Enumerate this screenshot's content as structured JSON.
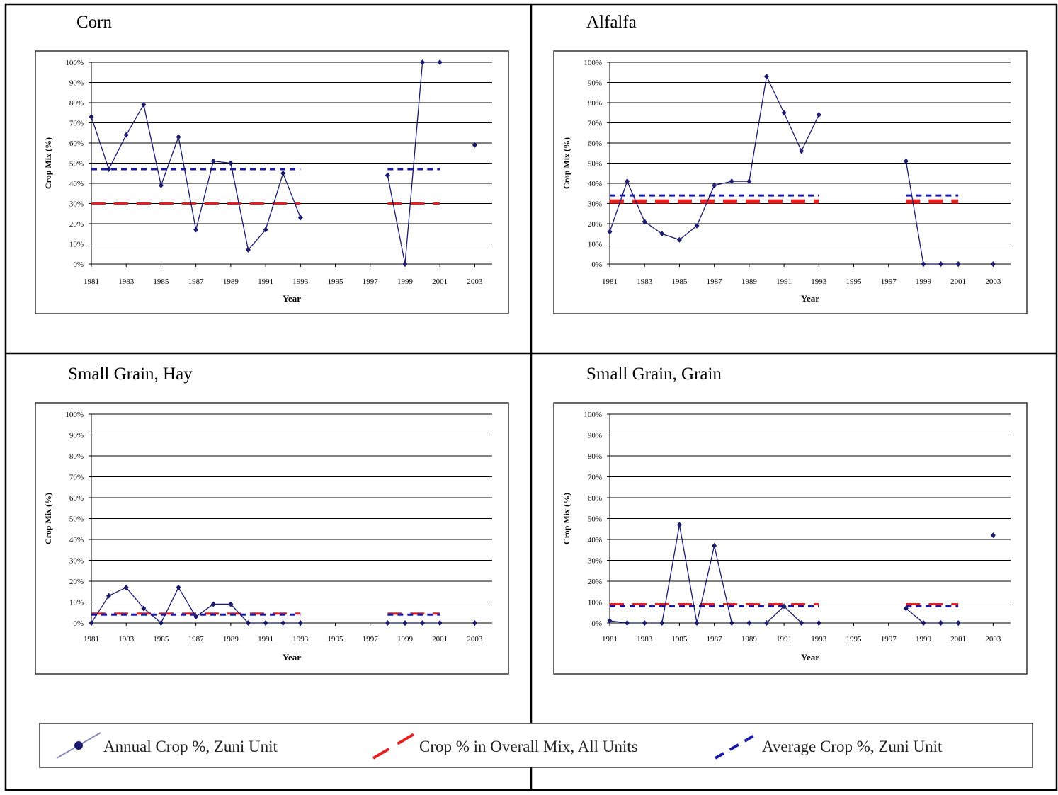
{
  "panels": [
    {
      "title": "Corn"
    },
    {
      "title": "Alfalfa"
    },
    {
      "title": "Small Grain, Hay"
    },
    {
      "title": "Small Grain, Grain"
    }
  ],
  "legend": {
    "annual": "Annual Crop %, Zuni Unit",
    "overall": "Crop % in Overall Mix, All Units",
    "average": "Average Crop %, Zuni Unit"
  },
  "colors": {
    "annual": "#1a1a6e",
    "overall": "#e52020",
    "average": "#1a1aa8"
  },
  "chart_data": [
    {
      "type": "line",
      "title": "Corn",
      "xlabel": "Year",
      "ylabel": "Crop Mix (%)",
      "x_ticks": [
        "1981",
        "1983",
        "1985",
        "1987",
        "1989",
        "1991",
        "1993",
        "1995",
        "1997",
        "1999",
        "2001",
        "2003"
      ],
      "y_ticks": [
        "0%",
        "10%",
        "20%",
        "30%",
        "40%",
        "50%",
        "60%",
        "70%",
        "80%",
        "90%",
        "100%"
      ],
      "xlim": [
        1981,
        2004
      ],
      "ylim": [
        0,
        100
      ],
      "grid": "horizontal",
      "series": [
        {
          "name": "Annual Crop %, Zuni Unit",
          "style": "line-markers",
          "segments": [
            [
              [
                1981,
                73
              ],
              [
                1982,
                47
              ],
              [
                1983,
                64
              ],
              [
                1984,
                79
              ],
              [
                1985,
                39
              ],
              [
                1986,
                63
              ],
              [
                1987,
                17
              ],
              [
                1988,
                51
              ],
              [
                1989,
                50
              ],
              [
                1990,
                7
              ],
              [
                1991,
                17
              ],
              [
                1992,
                45
              ],
              [
                1993,
                23
              ]
            ],
            [
              [
                1998,
                44
              ],
              [
                1999,
                0
              ],
              [
                2000,
                100
              ],
              [
                2001,
                100
              ]
            ],
            [
              [
                2003,
                59
              ]
            ]
          ]
        },
        {
          "name": "Crop % in Overall Mix, All Units",
          "style": "dash-red",
          "segments": [
            [
              [
                1981,
                30
              ],
              [
                1993,
                30
              ]
            ],
            [
              [
                1998,
                30
              ],
              [
                2001,
                30
              ]
            ]
          ]
        },
        {
          "name": "Average Crop %, Zuni Unit",
          "style": "dash-blue",
          "segments": [
            [
              [
                1981,
                47
              ],
              [
                1993,
                47
              ]
            ],
            [
              [
                1998,
                47
              ],
              [
                2001,
                47
              ]
            ]
          ]
        }
      ]
    },
    {
      "type": "line",
      "title": "Alfalfa",
      "xlabel": "Year",
      "ylabel": "Crop Mix (%)",
      "x_ticks": [
        "1981",
        "1983",
        "1985",
        "1987",
        "1989",
        "1991",
        "1993",
        "1995",
        "1997",
        "1999",
        "2001",
        "2003"
      ],
      "y_ticks": [
        "0%",
        "10%",
        "20%",
        "30%",
        "40%",
        "50%",
        "60%",
        "70%",
        "80%",
        "90%",
        "100%"
      ],
      "xlim": [
        1981,
        2004
      ],
      "ylim": [
        0,
        100
      ],
      "grid": "horizontal",
      "series": [
        {
          "name": "Annual Crop %, Zuni Unit",
          "style": "line-markers",
          "segments": [
            [
              [
                1981,
                16
              ],
              [
                1982,
                41
              ],
              [
                1983,
                21
              ],
              [
                1984,
                15
              ],
              [
                1985,
                12
              ],
              [
                1986,
                19
              ],
              [
                1987,
                39
              ],
              [
                1988,
                41
              ],
              [
                1989,
                41
              ],
              [
                1990,
                93
              ],
              [
                1991,
                75
              ],
              [
                1992,
                56
              ],
              [
                1993,
                74
              ]
            ],
            [
              [
                1998,
                51
              ],
              [
                1999,
                0
              ],
              [
                2000,
                0
              ],
              [
                2001,
                0
              ]
            ],
            [
              [
                2003,
                0
              ]
            ]
          ]
        },
        {
          "name": "Crop % in Overall Mix, All Units",
          "style": "dash-red",
          "segments": [
            [
              [
                1981,
                31
              ],
              [
                1993,
                31
              ]
            ],
            [
              [
                1998,
                31
              ],
              [
                2001,
                31
              ]
            ]
          ]
        },
        {
          "name": "Average Crop %, Zuni Unit",
          "style": "dash-blue",
          "segments": [
            [
              [
                1981,
                34
              ],
              [
                1993,
                34
              ]
            ],
            [
              [
                1998,
                34
              ],
              [
                2001,
                34
              ]
            ]
          ]
        }
      ]
    },
    {
      "type": "line",
      "title": "Small Grain, Hay",
      "xlabel": "Year",
      "ylabel": "Crop Mix (%)",
      "x_ticks": [
        "1981",
        "1983",
        "1985",
        "1987",
        "1989",
        "1991",
        "1993",
        "1995",
        "1997",
        "1999",
        "2001",
        "2003"
      ],
      "y_ticks": [
        "0%",
        "10%",
        "20%",
        "30%",
        "40%",
        "50%",
        "60%",
        "70%",
        "80%",
        "90%",
        "100%"
      ],
      "xlim": [
        1981,
        2004
      ],
      "ylim": [
        0,
        100
      ],
      "grid": "horizontal",
      "series": [
        {
          "name": "Annual Crop %, Zuni Unit",
          "style": "line-markers",
          "segments": [
            [
              [
                1981,
                0
              ],
              [
                1982,
                13
              ],
              [
                1983,
                17
              ],
              [
                1984,
                7
              ],
              [
                1985,
                0
              ],
              [
                1986,
                17
              ],
              [
                1987,
                3
              ],
              [
                1988,
                9
              ],
              [
                1989,
                9
              ],
              [
                1990,
                0
              ],
              [
                1991,
                0
              ],
              [
                1992,
                0
              ],
              [
                1993,
                0
              ]
            ],
            [
              [
                1998,
                0
              ],
              [
                1999,
                0
              ],
              [
                2000,
                0
              ],
              [
                2001,
                0
              ]
            ],
            [
              [
                2003,
                0
              ]
            ]
          ]
        },
        {
          "name": "Crop % in Overall Mix, All Units",
          "style": "dash-red",
          "segments": [
            [
              [
                1981,
                4.5
              ],
              [
                1993,
                4.5
              ]
            ],
            [
              [
                1998,
                4.5
              ],
              [
                2001,
                4.5
              ]
            ]
          ]
        },
        {
          "name": "Average Crop %, Zuni Unit",
          "style": "dash-blue",
          "segments": [
            [
              [
                1981,
                4
              ],
              [
                1993,
                4
              ]
            ],
            [
              [
                1998,
                4
              ],
              [
                2001,
                4
              ]
            ]
          ]
        }
      ]
    },
    {
      "type": "line",
      "title": "Small Grain, Grain",
      "xlabel": "Year",
      "ylabel": "Crop Mix (%)",
      "x_ticks": [
        "1981",
        "1983",
        "1985",
        "1987",
        "1989",
        "1991",
        "1993",
        "1995",
        "1997",
        "1999",
        "2001",
        "2003"
      ],
      "y_ticks": [
        "0%",
        "10%",
        "20%",
        "30%",
        "40%",
        "50%",
        "60%",
        "70%",
        "80%",
        "90%",
        "100%"
      ],
      "xlim": [
        1981,
        2004
      ],
      "ylim": [
        0,
        100
      ],
      "grid": "horizontal",
      "series": [
        {
          "name": "Annual Crop %, Zuni Unit",
          "style": "line-markers",
          "segments": [
            [
              [
                1981,
                1
              ],
              [
                1982,
                0
              ],
              [
                1983,
                0
              ],
              [
                1984,
                0
              ],
              [
                1985,
                47
              ],
              [
                1986,
                0
              ],
              [
                1987,
                37
              ],
              [
                1988,
                0
              ],
              [
                1989,
                0
              ],
              [
                1990,
                0
              ],
              [
                1991,
                8
              ],
              [
                1992,
                0
              ],
              [
                1993,
                0
              ]
            ],
            [
              [
                1998,
                7
              ],
              [
                1999,
                0
              ],
              [
                2000,
                0
              ],
              [
                2001,
                0
              ]
            ],
            [
              [
                2003,
                42
              ]
            ]
          ]
        },
        {
          "name": "Crop % in Overall Mix, All Units",
          "style": "dash-red",
          "segments": [
            [
              [
                1981,
                9
              ],
              [
                1993,
                9
              ]
            ],
            [
              [
                1998,
                9
              ],
              [
                2001,
                9
              ]
            ]
          ]
        },
        {
          "name": "Average Crop %, Zuni Unit",
          "style": "dash-blue",
          "segments": [
            [
              [
                1981,
                8
              ],
              [
                1993,
                8
              ]
            ],
            [
              [
                1998,
                8
              ],
              [
                2001,
                8
              ]
            ]
          ]
        }
      ]
    }
  ]
}
